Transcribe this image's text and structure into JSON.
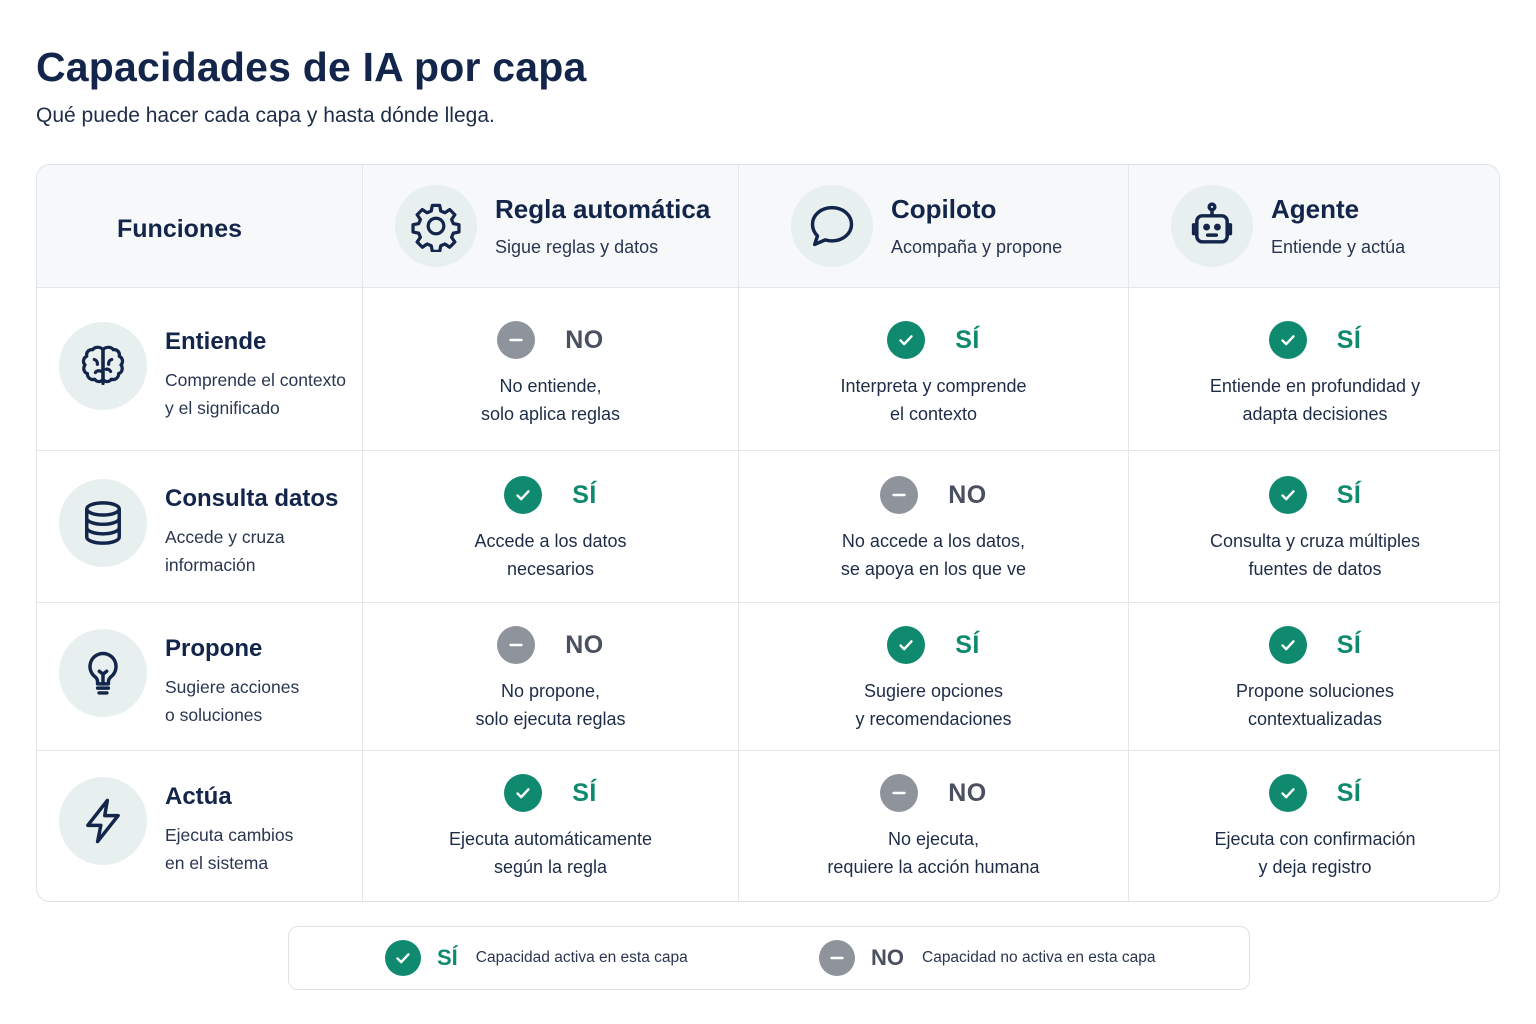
{
  "title": "Capacidades de IA por capa",
  "subtitle": "Qué puede hacer cada capa y hasta dónde llega.",
  "colors": {
    "accent": "#0f8a6e",
    "negative": "#8e939c",
    "heading": "#13254a",
    "icon_bg": "#e8f0ef"
  },
  "table": {
    "corner_label": "Funciones",
    "columns": [
      {
        "title": "Regla automática",
        "subtitle": "Sigue reglas y datos",
        "icon": "gear-icon"
      },
      {
        "title": "Copiloto",
        "subtitle": "Acompaña y propone",
        "icon": "chat-bubble-icon"
      },
      {
        "title": "Agente",
        "subtitle": "Entiende y actúa",
        "icon": "robot-icon"
      }
    ],
    "rows": [
      {
        "title": "Entiende",
        "desc": "Comprende el contexto\ny el significado",
        "icon": "brain-icon",
        "cells": [
          {
            "status": "no",
            "label": "NO",
            "desc": "No entiende,\nsolo aplica reglas"
          },
          {
            "status": "yes",
            "label": "SÍ",
            "desc": "Interpreta y comprende\nel contexto"
          },
          {
            "status": "yes",
            "label": "SÍ",
            "desc": "Entiende en profundidad y\nadapta decisiones"
          }
        ]
      },
      {
        "title": "Consulta datos",
        "desc": "Accede y cruza\ninformación",
        "icon": "database-icon",
        "cells": [
          {
            "status": "yes",
            "label": "SÍ",
            "desc": "Accede a los datos\nnecesarios"
          },
          {
            "status": "no",
            "label": "NO",
            "desc": "No accede a los datos,\nse apoya en los que ve"
          },
          {
            "status": "yes",
            "label": "SÍ",
            "desc": "Consulta y cruza múltiples\nfuentes de datos"
          }
        ]
      },
      {
        "title": "Propone",
        "desc": "Sugiere acciones\no soluciones",
        "icon": "lightbulb-icon",
        "cells": [
          {
            "status": "no",
            "label": "NO",
            "desc": "No propone,\nsolo ejecuta reglas"
          },
          {
            "status": "yes",
            "label": "SÍ",
            "desc": "Sugiere opciones\ny recomendaciones"
          },
          {
            "status": "yes",
            "label": "SÍ",
            "desc": "Propone soluciones\ncontextualizadas"
          }
        ]
      },
      {
        "title": "Actúa",
        "desc": "Ejecuta cambios\nen el sistema",
        "icon": "lightning-icon",
        "cells": [
          {
            "status": "yes",
            "label": "SÍ",
            "desc": "Ejecuta automáticamente\nsegún la regla"
          },
          {
            "status": "no",
            "label": "NO",
            "desc": "No ejecuta,\nrequiere la acción humana"
          },
          {
            "status": "yes",
            "label": "SÍ",
            "desc": "Ejecuta con confirmación\ny deja registro"
          }
        ]
      }
    ]
  },
  "legend": {
    "yes_label": "SÍ",
    "yes_text": "Capacidad activa en esta capa",
    "no_label": "NO",
    "no_text": "Capacidad no activa en esta capa"
  }
}
